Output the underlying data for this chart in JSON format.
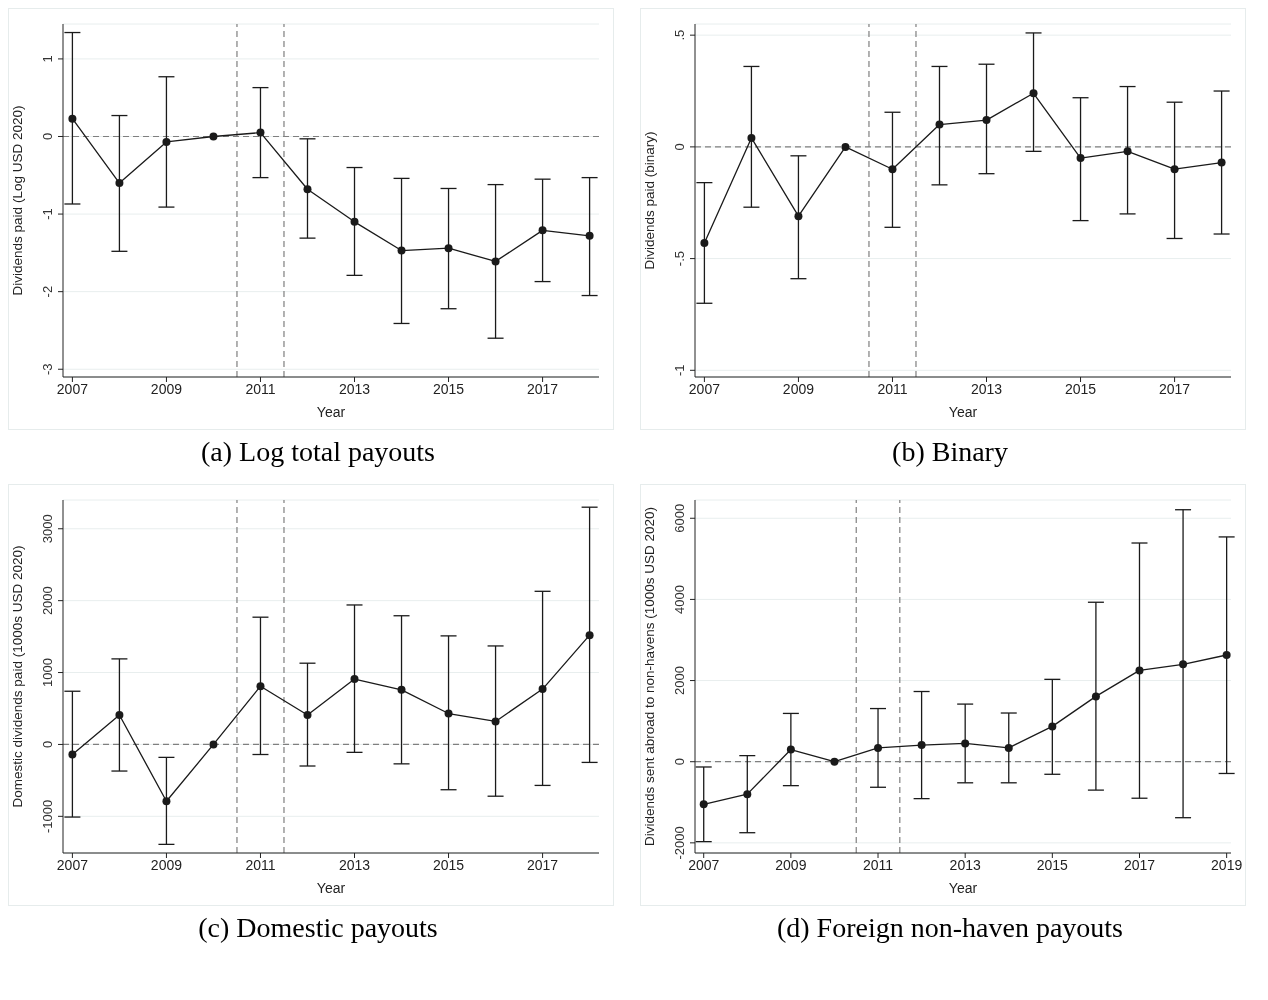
{
  "chart_data": [
    {
      "type": "line",
      "title": "(a) Log total payouts",
      "xlabel": "Year",
      "ylabel": "Dividends paid (Log USD 2020)",
      "x": [
        2007,
        2008,
        2009,
        2010,
        2011,
        2012,
        2013,
        2014,
        2015,
        2016,
        2017,
        2018
      ],
      "series": [
        {
          "color": "#1a1a1a",
          "values": [
            0.23,
            -0.6,
            -0.07,
            0,
            0.05,
            -0.68,
            -1.1,
            -1.47,
            -1.44,
            -1.61,
            -1.21,
            -1.28
          ],
          "errors": [
            [
              -0.87,
              1.34
            ],
            [
              -1.48,
              0.27
            ],
            [
              -0.91,
              0.77
            ],
            null,
            [
              -0.53,
              0.63
            ],
            [
              -1.31,
              -0.03
            ],
            [
              -1.79,
              -0.4
            ],
            [
              -2.41,
              -0.54
            ],
            [
              -2.22,
              -0.67
            ],
            [
              -2.6,
              -0.62
            ],
            [
              -1.87,
              -0.55
            ],
            [
              -2.05,
              -0.53
            ]
          ]
        }
      ],
      "xlim": [
        2006.8,
        2018.2
      ],
      "xticks": [
        2007,
        2009,
        2011,
        2013,
        2015,
        2017
      ],
      "ylim": [
        -3.1,
        1.45
      ],
      "yticks": [
        -3,
        -2,
        -1,
        0,
        1
      ],
      "grid": "y",
      "marker": "circle",
      "line_style": "solid",
      "ref_lines": [
        {
          "axis": "x",
          "value": 2010.5,
          "color": "#7f7f7f",
          "line_style": "dashed"
        },
        {
          "axis": "x",
          "value": 2011.5,
          "color": "#7f7f7f",
          "line_style": "dashed"
        },
        {
          "axis": "y",
          "value": 0,
          "color": "#7f7f7f",
          "line_style": "dashed"
        }
      ]
    },
    {
      "type": "line",
      "title": "(b) Binary",
      "xlabel": "Year",
      "ylabel": "Dividends paid (binary)",
      "x": [
        2007,
        2008,
        2009,
        2010,
        2011,
        2012,
        2013,
        2014,
        2015,
        2016,
        2017,
        2018
      ],
      "series": [
        {
          "color": "#1a1a1a",
          "values": [
            -0.43,
            0.04,
            -0.31,
            0,
            -0.1,
            0.1,
            0.12,
            0.24,
            -0.05,
            -0.02,
            -0.1,
            -0.07
          ],
          "errors": [
            [
              -0.7,
              -0.16
            ],
            [
              -0.27,
              0.36
            ],
            [
              -0.59,
              -0.04
            ],
            null,
            [
              -0.36,
              0.155
            ],
            [
              -0.17,
              0.36
            ],
            [
              -0.12,
              0.37
            ],
            [
              -0.02,
              0.51
            ],
            [
              -0.33,
              0.22
            ],
            [
              -0.3,
              0.27
            ],
            [
              -0.41,
              0.2
            ],
            [
              -0.39,
              0.25
            ]
          ]
        }
      ],
      "xlim": [
        2006.8,
        2018.2
      ],
      "xticks": [
        2007,
        2009,
        2011,
        2013,
        2015,
        2017
      ],
      "ylim": [
        -1.03,
        0.55
      ],
      "yticks": [
        {
          "value": -1,
          "label": "-1"
        },
        {
          "value": -0.5,
          "label": "-.5"
        },
        0,
        {
          "value": 0.5,
          "label": ".5"
        }
      ],
      "grid": "y",
      "marker": "circle",
      "line_style": "solid",
      "ref_lines": [
        {
          "axis": "x",
          "value": 2010.5,
          "color": "#7f7f7f",
          "line_style": "dashed"
        },
        {
          "axis": "x",
          "value": 2011.5,
          "color": "#7f7f7f",
          "line_style": "dashed"
        },
        {
          "axis": "y",
          "value": 0,
          "color": "#7f7f7f",
          "line_style": "dashed"
        }
      ]
    },
    {
      "type": "line",
      "title": "(c) Domestic payouts",
      "xlabel": "Year",
      "ylabel": "Domestic dividends paid (1000s USD 2020)",
      "x": [
        2007,
        2008,
        2009,
        2010,
        2011,
        2012,
        2013,
        2014,
        2015,
        2016,
        2017,
        2018
      ],
      "series": [
        {
          "color": "#1a1a1a",
          "values": [
            -140,
            410,
            -790,
            0,
            810,
            410,
            910,
            760,
            430,
            320,
            770,
            1520
          ],
          "errors": [
            [
              -1010,
              740
            ],
            [
              -370,
              1190
            ],
            [
              -1390,
              -180
            ],
            null,
            [
              -140,
              1770
            ],
            [
              -300,
              1130
            ],
            [
              -110,
              1940
            ],
            [
              -270,
              1790
            ],
            [
              -630,
              1510
            ],
            [
              -720,
              1370
            ],
            [
              -570,
              2130
            ],
            [
              -250,
              3300
            ]
          ]
        }
      ],
      "xlim": [
        2006.8,
        2018.2
      ],
      "xticks": [
        2007,
        2009,
        2011,
        2013,
        2015,
        2017
      ],
      "ylim": [
        -1510,
        3400
      ],
      "yticks": [
        -1000,
        0,
        1000,
        2000,
        3000
      ],
      "grid": "y",
      "marker": "circle",
      "line_style": "solid",
      "ref_lines": [
        {
          "axis": "x",
          "value": 2010.5,
          "color": "#7f7f7f",
          "line_style": "dashed"
        },
        {
          "axis": "x",
          "value": 2011.5,
          "color": "#7f7f7f",
          "line_style": "dashed"
        },
        {
          "axis": "y",
          "value": 0,
          "color": "#7f7f7f",
          "line_style": "dashed"
        }
      ]
    },
    {
      "type": "line",
      "title": "(d) Foreign non-haven payouts",
      "xlabel": "Year",
      "ylabel": "Dividends sent abroad to non-havens (1000s USD 2020)",
      "x": [
        2007,
        2008,
        2009,
        2010,
        2011,
        2012,
        2013,
        2014,
        2015,
        2016,
        2017,
        2018,
        2019
      ],
      "series": [
        {
          "color": "#1a1a1a",
          "values": [
            -1050,
            -800,
            300,
            0,
            340,
            410,
            450,
            340,
            870,
            1610,
            2250,
            2400,
            2630
          ],
          "errors": [
            [
              -1970,
              -130
            ],
            [
              -1750,
              150
            ],
            [
              -590,
              1190
            ],
            null,
            [
              -630,
              1310
            ],
            [
              -910,
              1730
            ],
            [
              -520,
              1420
            ],
            [
              -520,
              1200
            ],
            [
              -310,
              2030
            ],
            [
              -700,
              3930
            ],
            [
              -900,
              5390
            ],
            [
              -1380,
              6210
            ],
            [
              -290,
              5540
            ]
          ]
        }
      ],
      "xlim": [
        2006.8,
        2019.1
      ],
      "xticks": [
        2007,
        2009,
        2011,
        2013,
        2015,
        2017,
        2019
      ],
      "ylim": [
        -2250,
        6450
      ],
      "yticks": [
        -2000,
        0,
        2000,
        4000,
        6000
      ],
      "grid": "y",
      "marker": "circle",
      "line_style": "solid",
      "ref_lines": [
        {
          "axis": "x",
          "value": 2010.5,
          "color": "#7f7f7f",
          "line_style": "dashed"
        },
        {
          "axis": "x",
          "value": 2011.5,
          "color": "#7f7f7f",
          "line_style": "dashed"
        },
        {
          "axis": "y",
          "value": 0,
          "color": "#7f7f7f",
          "line_style": "dashed"
        }
      ]
    }
  ]
}
